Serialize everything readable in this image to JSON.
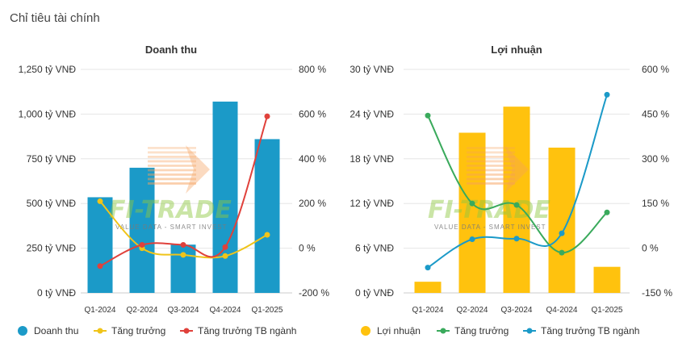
{
  "page": {
    "title": "Chỉ tiêu tài chính"
  },
  "watermark": {
    "left_text": "FI-TRADE",
    "right_text": "FI-TRADE",
    "sub_text": "VALUE DATA - SMART INVEST",
    "colors": [
      "#f5a05a",
      "#8cc63f"
    ]
  },
  "chart_data": [
    {
      "type": "bar",
      "title": "Doanh thu",
      "categories": [
        "Q1-2024",
        "Q2-2024",
        "Q3-2024",
        "Q4-2024",
        "Q1-2025"
      ],
      "ylim": [
        0,
        1250
      ],
      "yticks": [
        0,
        250,
        500,
        750,
        1000,
        1250
      ],
      "ytick_labels": [
        "0 tỷ VNĐ",
        "250 tỷ VNĐ",
        "500 tỷ VNĐ",
        "750 tỷ VNĐ",
        "1,000 tỷ VNĐ",
        "1,250 tỷ VNĐ"
      ],
      "y2lim": [
        -200,
        800
      ],
      "y2ticks": [
        -200,
        0,
        200,
        400,
        600,
        800
      ],
      "y2tick_labels": [
        "-200 %",
        "0 %",
        "200 %",
        "400 %",
        "600 %",
        "800 %"
      ],
      "grid": true,
      "legend": "bottom",
      "series": [
        {
          "name": "Doanh thu",
          "kind": "bar",
          "axis": "left",
          "color": "#1b9ac8",
          "values": [
            535,
            700,
            270,
            1070,
            860
          ]
        },
        {
          "name": "Tăng trưởng",
          "kind": "line",
          "axis": "right",
          "color": "#f0c419",
          "values": [
            210,
            0,
            -30,
            -35,
            60
          ]
        },
        {
          "name": "Tăng trưởng TB ngành",
          "kind": "line",
          "axis": "right",
          "color": "#e0413b",
          "values": [
            -80,
            15,
            15,
            5,
            590
          ]
        }
      ]
    },
    {
      "type": "bar",
      "title": "Lợi nhuận",
      "categories": [
        "Q1-2024",
        "Q2-2024",
        "Q3-2024",
        "Q4-2024",
        "Q1-2025"
      ],
      "ylim": [
        0,
        30
      ],
      "yticks": [
        0,
        6,
        12,
        18,
        24,
        30
      ],
      "ytick_labels": [
        "0 tỷ VNĐ",
        "6 tỷ VNĐ",
        "12 tỷ VNĐ",
        "18 tỷ VNĐ",
        "24 tỷ VNĐ",
        "30 tỷ VNĐ"
      ],
      "y2lim": [
        -150,
        600
      ],
      "y2ticks": [
        -150,
        0,
        150,
        300,
        450,
        600
      ],
      "y2tick_labels": [
        "-150 %",
        "0 %",
        "150 %",
        "300 %",
        "450 %",
        "600 %"
      ],
      "grid": true,
      "legend": "bottom",
      "series": [
        {
          "name": "Lợi nhuận",
          "kind": "bar",
          "axis": "left",
          "color": "#ffc20e",
          "values": [
            1.5,
            21.5,
            25,
            19.5,
            3.5
          ]
        },
        {
          "name": "Tăng trưởng",
          "kind": "line",
          "axis": "right",
          "color": "#3aaa5c",
          "values": [
            445,
            150,
            145,
            -15,
            120
          ]
        },
        {
          "name": "Tăng trưởng TB ngành",
          "kind": "line",
          "axis": "right",
          "color": "#1b9ac8",
          "values": [
            -65,
            30,
            32,
            50,
            515
          ]
        }
      ]
    }
  ]
}
